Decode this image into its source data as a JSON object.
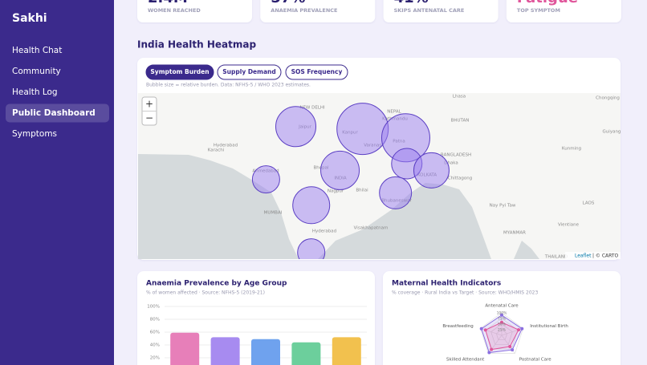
{
  "sidebar": {
    "logo": "Sakhi",
    "nav": [
      "Health Chat",
      "Community",
      "Health Log",
      "Public Dashboard",
      "Symptoms"
    ],
    "active": 3
  },
  "stats": [
    {
      "value": "2.4M",
      "label": "WOMEN REACHED"
    },
    {
      "value": "57%",
      "label": "ANAEMIA PREVALENCE"
    },
    {
      "value": "41%",
      "label": "SKIPS ANTENATAL CARE"
    },
    {
      "value": "Fatigue",
      "label": "TOP SYMPTOM"
    }
  ],
  "heatmap": {
    "title": "India Health Heatmap",
    "tabs": [
      "Symptom Burden",
      "Supply Demand",
      "SOS Frequency"
    ],
    "active_tab": 0,
    "caption": "Bubble size = relative burden. Data: NFHS-5 / WHO 2023 estimates.",
    "zoom_in": "+",
    "zoom_out": "−",
    "attribution_link": "Leaflet",
    "attribution": "| © CARTO",
    "labels": [
      "NEW DELHI",
      "Jaipur",
      "Kanpur",
      "Varanasi",
      "Patna",
      "NEPAL",
      "Kathmandu",
      "BHUTAN",
      "BANGLADESH",
      "Dhaka",
      "Chittagong",
      "KOLKATA",
      "INDIA",
      "Bhopal",
      "Nagpur",
      "Bhilai",
      "Bhubaneswar",
      "Visakhapatnam",
      "Hyderabad",
      "MUMBAI",
      "Ahmedabad",
      "Hyderabad",
      "Karachi",
      "Lhasa",
      "Chongqing",
      "Guiyang",
      "Kunming",
      "Nay Pyi Taw",
      "MYANMAR",
      "LAOS",
      "Vientiane",
      "THAILAND"
    ],
    "bubbles": [
      {
        "lat": 26.9,
        "lon": 75.6,
        "value": 25
      },
      {
        "lat": 26.7,
        "lon": 82.1,
        "value": 32
      },
      {
        "lat": 25.9,
        "lon": 86.3,
        "value": 30
      },
      {
        "lat": 23.6,
        "lon": 86.4,
        "value": 19
      },
      {
        "lat": 23.0,
        "lon": 88.8,
        "value": 22
      },
      {
        "lat": 22.2,
        "lon": 72.7,
        "value": 17
      },
      {
        "lat": 23.0,
        "lon": 79.9,
        "value": 24
      },
      {
        "lat": 19.9,
        "lon": 77.1,
        "value": 23
      },
      {
        "lat": 21.0,
        "lon": 85.3,
        "value": 20
      },
      {
        "lat": 15.7,
        "lon": 77.1,
        "value": 17
      }
    ],
    "bubble_color": "#9b7ff0"
  },
  "chart_data": [
    {
      "type": "bar",
      "title": "Anaemia Prevalence by Age Group",
      "subtitle": "% of women affected · Source: NFHS-5 (2019-21)",
      "categories": [
        null,
        null,
        null,
        null,
        null
      ],
      "values": [
        59,
        52,
        49,
        44,
        52
      ],
      "colors": [
        "#e77fb9",
        "#a78bf0",
        "#6fa2ee",
        "#6ccf9c",
        "#f2c14e"
      ],
      "ylim": [
        0,
        100
      ],
      "yticks": [
        {
          "value": 20,
          "label": "20%"
        },
        {
          "value": 40,
          "label": "40%"
        },
        {
          "value": 60,
          "label": "60%"
        },
        {
          "value": 80,
          "label": "80%"
        },
        {
          "value": 100,
          "label": "100%"
        }
      ],
      "grid": true
    },
    {
      "type": "radar",
      "title": "Maternal Health Indicators",
      "subtitle": "% coverage · Rural India vs Target · Source: WHO/HMIS 2023",
      "categories": [
        "Antenatal Care",
        "Institutional Birth",
        "Postnatal Care",
        "Skilled Attendant",
        "Breastfeeding"
      ],
      "series": [
        {
          "color": "#8b6fe0",
          "values": [
            90,
            95,
            80,
            95,
            95
          ]
        },
        {
          "color": "#e0569b",
          "values": [
            58,
            79,
            62,
            78,
            76
          ]
        }
      ],
      "rlim": [
        0,
        100
      ],
      "rticks": [
        {
          "value": 25,
          "label": "25%"
        },
        {
          "value": 50,
          "label": "50%"
        },
        {
          "value": 75,
          "label": "75%"
        },
        {
          "value": 100,
          "label": "100%"
        }
      ]
    }
  ]
}
